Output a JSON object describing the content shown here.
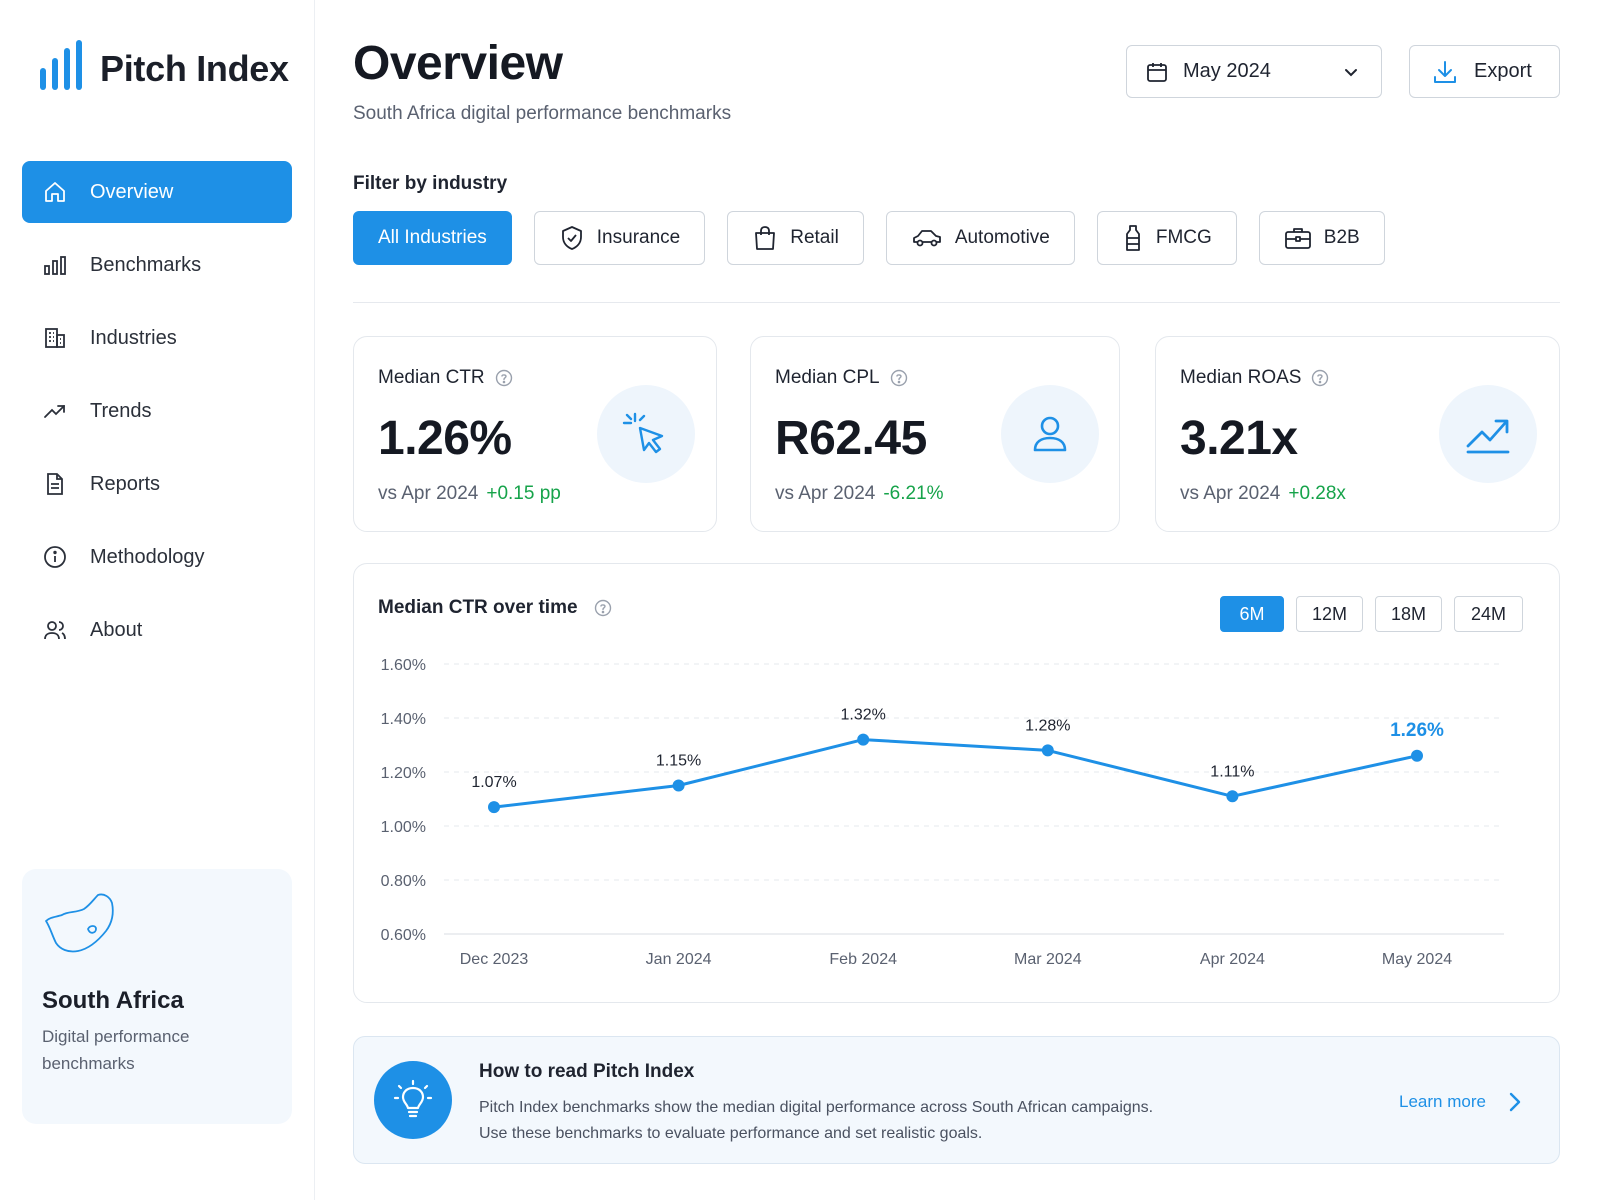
{
  "app": {
    "title": "Pitch Index"
  },
  "sidebar": {
    "items": [
      {
        "label": "Overview",
        "icon": "home-icon"
      },
      {
        "label": "Benchmarks",
        "icon": "bar-chart-icon"
      },
      {
        "label": "Industries",
        "icon": "building-icon"
      },
      {
        "label": "Trends",
        "icon": "trend-icon"
      },
      {
        "label": "Reports",
        "icon": "document-icon"
      },
      {
        "label": "Methodology",
        "icon": "info-icon"
      },
      {
        "label": "About",
        "icon": "users-icon"
      }
    ],
    "active": "Overview",
    "region": {
      "title": "South Africa",
      "subtitle": "Digital performance benchmarks",
      "icon": "south-africa-map-icon"
    }
  },
  "header": {
    "title": "Overview",
    "subtitle": "South Africa digital performance benchmarks",
    "date_select": "May 2024",
    "export_label": "Export"
  },
  "filters": {
    "label": "Filter by industry",
    "chips": [
      {
        "label": "All Industries",
        "icon": ""
      },
      {
        "label": "Insurance",
        "icon": "shield-icon"
      },
      {
        "label": "Retail",
        "icon": "shopping-bag-icon"
      },
      {
        "label": "Automotive",
        "icon": "car-icon"
      },
      {
        "label": "FMCG",
        "icon": "bottle-icon"
      },
      {
        "label": "B2B",
        "icon": "briefcase-icon"
      }
    ],
    "active": "All Industries"
  },
  "kpis": [
    {
      "label": "Median CTR",
      "value": "1.26%",
      "compare": "vs Apr 2024",
      "delta": "+0.15 pp",
      "icon": "cursor-click-icon"
    },
    {
      "label": "Median CPL",
      "value": "R62.45",
      "compare": "vs Apr 2024",
      "delta": "-6.21%",
      "icon": "user-icon"
    },
    {
      "label": "Median ROAS",
      "value": "3.21x",
      "compare": "vs Apr 2024",
      "delta": "+0.28x",
      "icon": "trend-up-icon"
    }
  ],
  "chart": {
    "title": "Median CTR over time",
    "ranges": [
      "6M",
      "12M",
      "18M",
      "24M"
    ],
    "active_range": "6M"
  },
  "chart_data": {
    "type": "line",
    "x": [
      "Dec 2023",
      "Jan 2024",
      "Feb 2024",
      "Mar 2024",
      "Apr 2024",
      "May 2024"
    ],
    "series": [
      {
        "values": [
          1.07,
          1.15,
          1.32,
          1.28,
          1.11,
          1.26
        ]
      }
    ],
    "data_labels": [
      "1.07%",
      "1.15%",
      "1.32%",
      "1.28%",
      "1.11%",
      "1.26%"
    ],
    "y_ticks": [
      "1.60%",
      "1.40%",
      "1.20%",
      "1.00%",
      "0.80%",
      "0.60%"
    ],
    "y_tick_values": [
      1.6,
      1.4,
      1.2,
      1.0,
      0.8,
      0.6
    ],
    "ylim": [
      0.6,
      1.6
    ],
    "grid": true,
    "color": "#1e90e6"
  },
  "info": {
    "title": "How to read Pitch Index",
    "line1": "Pitch Index benchmarks show the median digital performance across South African campaigns.",
    "line2": "Use these benchmarks to evaluate performance and set realistic goals.",
    "link": "Learn more",
    "icon": "lightbulb-icon"
  },
  "colors": {
    "accent": "#1e90e6",
    "positive": "#16a34a",
    "text": "#1f2430",
    "muted": "#5a6170"
  }
}
